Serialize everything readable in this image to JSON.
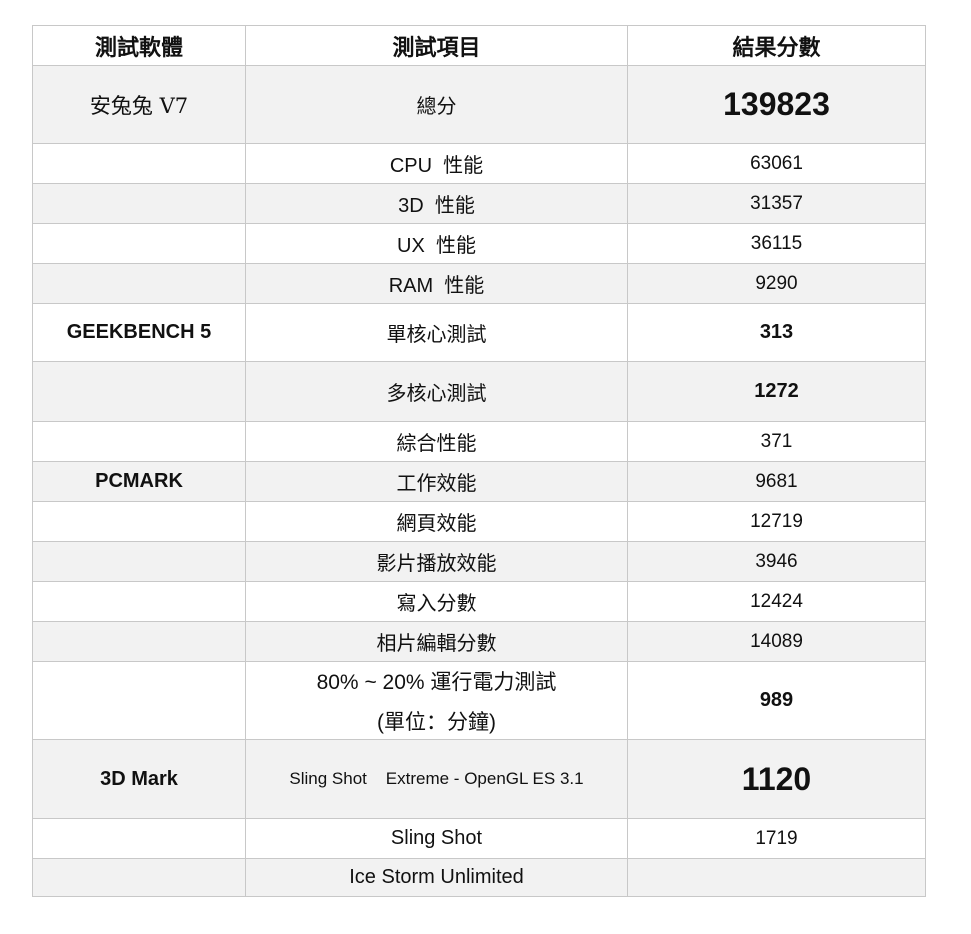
{
  "header": {
    "software": "測試軟體",
    "item": "測試項目",
    "result": "結果分數"
  },
  "rows": [
    {
      "software": "安兔兔  V7",
      "item": "總分",
      "score": "139823",
      "style": "big"
    },
    {
      "software": "",
      "item": "CPU  性能",
      "score": "63061"
    },
    {
      "software": "",
      "item": "3D  性能",
      "score": "31357"
    },
    {
      "software": "",
      "item": "UX  性能",
      "score": "36115"
    },
    {
      "software": "",
      "item": "RAM  性能",
      "score": "9290"
    },
    {
      "software": "GEEKBENCH 5",
      "item": "單核心測試",
      "score": "313",
      "style": "bold"
    },
    {
      "software": "",
      "item": "多核心測試",
      "score": "1272",
      "style": "bold"
    },
    {
      "software": "",
      "item": "綜合性能",
      "score": "371"
    },
    {
      "software": "PCMARK",
      "item": "工作效能",
      "score": "9681"
    },
    {
      "software": "",
      "item": "網頁效能",
      "score": "12719"
    },
    {
      "software": "",
      "item": "影片播放效能",
      "score": "3946"
    },
    {
      "software": "",
      "item": "寫入分數",
      "score": "12424"
    },
    {
      "software": "",
      "item": "相片編輯分數",
      "score": "14089"
    },
    {
      "software": "",
      "item": "80% ~ 20%  運行電力測試",
      "item2": "(單位：分鐘)",
      "score": "989",
      "style": "bold"
    },
    {
      "software": "3D Mark",
      "item": "Sling Shot    Extreme - OpenGL ES 3.1",
      "score": "1120",
      "style": "big"
    },
    {
      "software": "",
      "item": "Sling Shot",
      "score": "1719"
    },
    {
      "software": "",
      "item": "Ice Storm Unlimited",
      "score": ""
    }
  ]
}
